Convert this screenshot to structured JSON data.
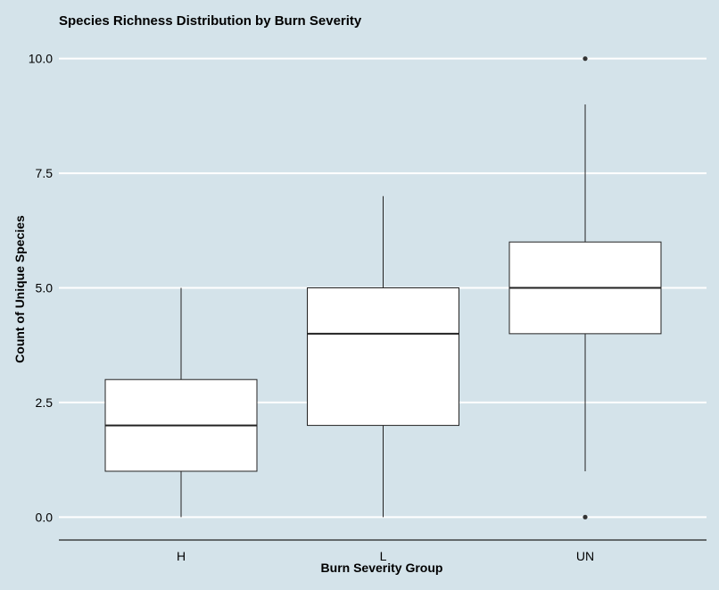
{
  "chart_data": {
    "type": "boxplot",
    "title": "Species Richness Distribution by Burn Severity",
    "xlabel": "Burn Severity Group",
    "ylabel": "Count of Unique Species",
    "categories": [
      "H",
      "L",
      "UN"
    ],
    "y_ticks": [
      "0.0",
      "2.5",
      "5.0",
      "7.5",
      "10.0"
    ],
    "y_tick_values": [
      0,
      2.5,
      5,
      7.5,
      10
    ],
    "ylim": [
      -0.5,
      10.5
    ],
    "grid": "horizontal-major",
    "background_color": "#d4e3ea",
    "box_fill": "#ffffff",
    "line_color": "#222222",
    "grid_color": "#ffffff",
    "boxes": [
      {
        "category": "H",
        "whisker_low": 0,
        "q1": 1,
        "median": 2,
        "q3": 3,
        "whisker_high": 5,
        "outliers": []
      },
      {
        "category": "L",
        "whisker_low": 0,
        "q1": 2,
        "median": 4,
        "q3": 5,
        "whisker_high": 7,
        "outliers": []
      },
      {
        "category": "UN",
        "whisker_low": 1,
        "q1": 4,
        "median": 5,
        "q3": 6,
        "whisker_high": 9,
        "outliers": [
          0,
          10
        ]
      }
    ]
  }
}
